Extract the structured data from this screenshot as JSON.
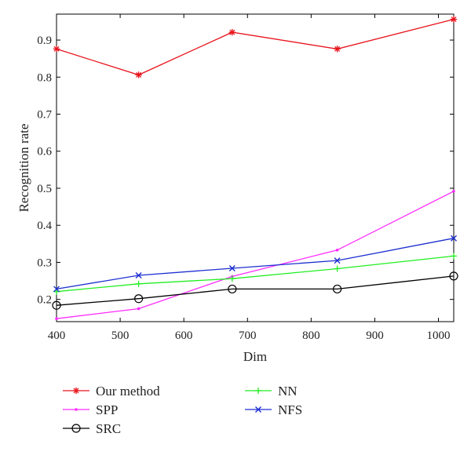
{
  "chart_data": {
    "type": "line",
    "xlabel": "Dim",
    "ylabel": "Recognition rate",
    "xlim": [
      400,
      1024
    ],
    "ylim": [
      0.14,
      0.97
    ],
    "xticks": [
      400,
      500,
      600,
      700,
      800,
      900,
      1000
    ],
    "xtick_labels": [
      "400",
      "500",
      "600",
      "700",
      "800",
      "900",
      "1000"
    ],
    "yticks": [
      0.2,
      0.3,
      0.4,
      0.5,
      0.6,
      0.7,
      0.8,
      0.9
    ],
    "ytick_labels": [
      "0.2",
      "0.3",
      "0.4",
      "0.5",
      "0.6",
      "0.7",
      "0.8",
      "0.9"
    ],
    "grid": false,
    "legend_position": "below-plot",
    "x": [
      400,
      529,
      676,
      841,
      1024
    ],
    "series": [
      {
        "name": "Our method",
        "values": [
          0.876,
          0.806,
          0.921,
          0.876,
          0.956
        ],
        "color": "#e8141c",
        "marker": "asterisk"
      },
      {
        "name": "SPP",
        "values": [
          0.148,
          0.175,
          0.262,
          0.333,
          0.492
        ],
        "color": "#ff2bff",
        "marker": "point"
      },
      {
        "name": "SRC",
        "values": [
          0.184,
          0.202,
          0.228,
          0.228,
          0.263
        ],
        "color": "#000000",
        "marker": "circle"
      },
      {
        "name": "NN",
        "values": [
          0.221,
          0.242,
          0.256,
          0.283,
          0.317
        ],
        "color": "#22ee22",
        "marker": "plus"
      },
      {
        "name": "NFS",
        "values": [
          0.228,
          0.265,
          0.284,
          0.305,
          0.365
        ],
        "color": "#1c2fd0",
        "marker": "cross"
      }
    ]
  }
}
